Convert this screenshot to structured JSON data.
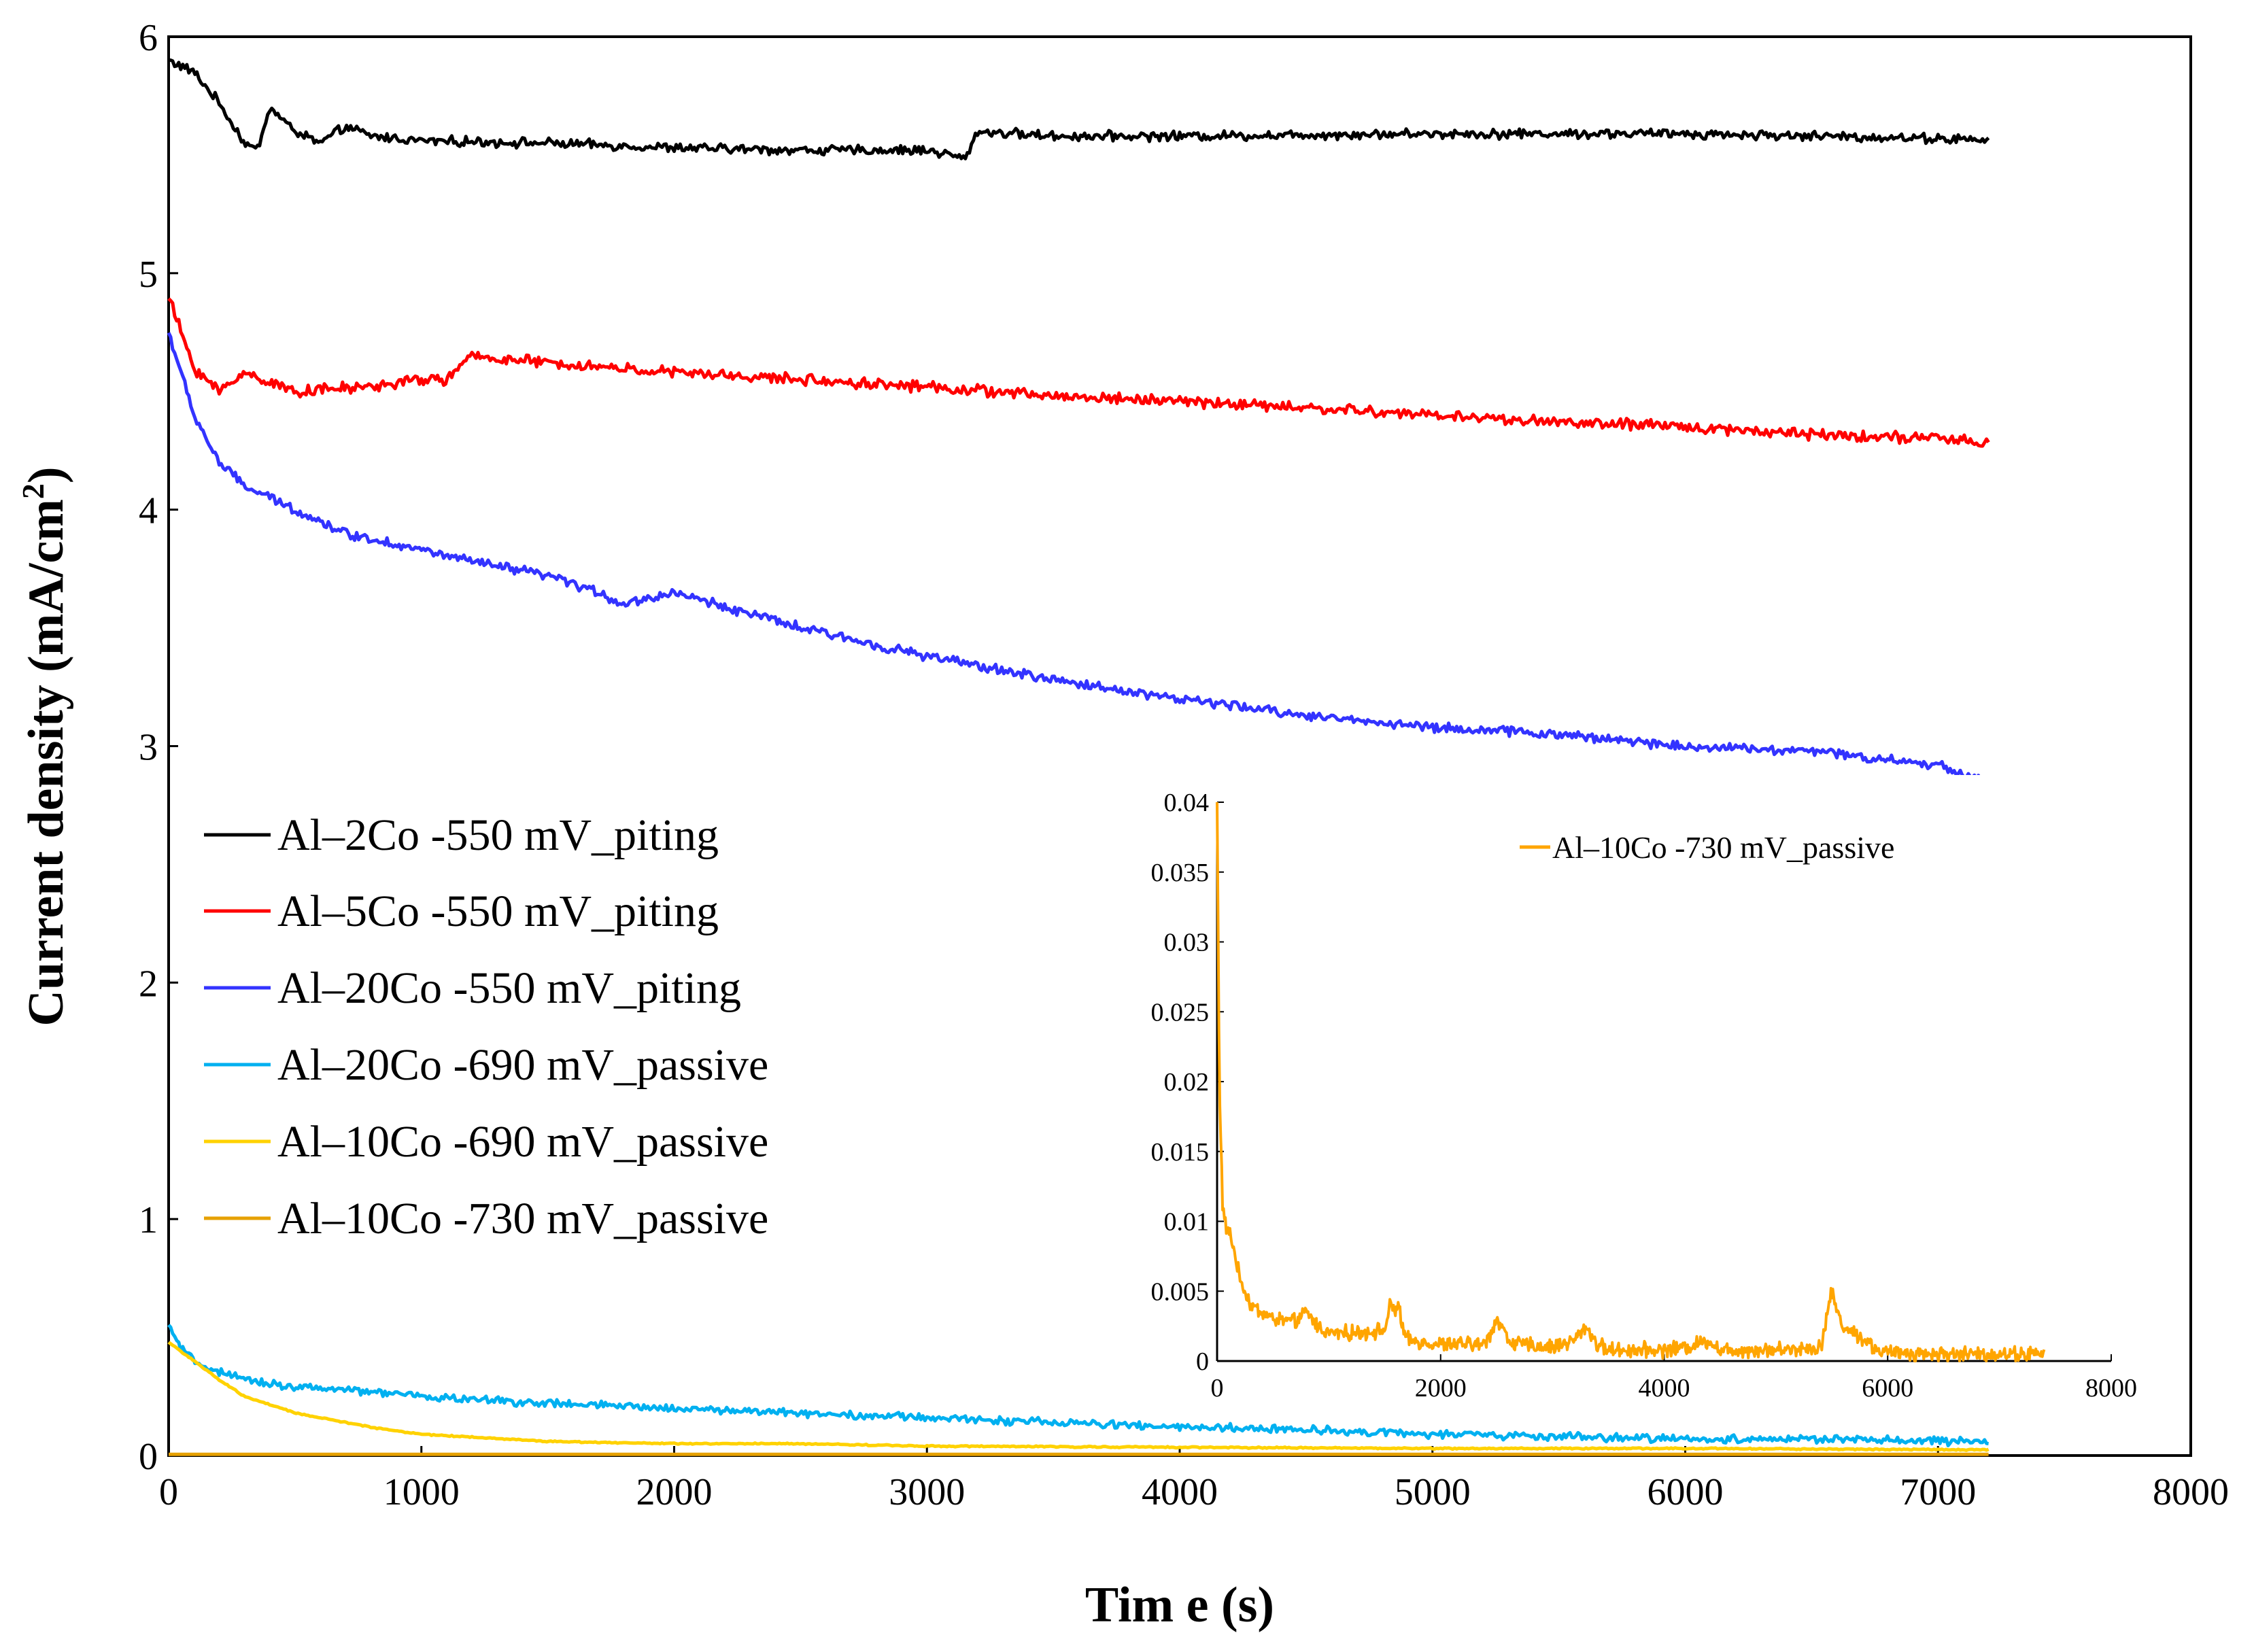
{
  "chart_data": [
    {
      "type": "line",
      "role": "main",
      "title": "",
      "xlabel": "Tim e (s)",
      "ylabel": "Current density (mA/cm",
      "ylabel_sup": "2",
      "ylabel_close": ")",
      "xlim": [
        0,
        8000
      ],
      "ylim": [
        0,
        6
      ],
      "x_ticks": [
        0,
        1000,
        2000,
        3000,
        4000,
        5000,
        6000,
        7000,
        8000
      ],
      "y_ticks": [
        0,
        1,
        2,
        3,
        4,
        5,
        6
      ],
      "grid": false,
      "legend_position": "left-middle",
      "series": [
        {
          "name": "Al–2Co -550 mV_piting",
          "color": "#000000",
          "noise": 0.03,
          "x": [
            0,
            100,
            200,
            300,
            350,
            400,
            500,
            600,
            700,
            800,
            1000,
            1500,
            2000,
            2500,
            3000,
            3100,
            3150,
            3200,
            3500,
            4000,
            5000,
            6000,
            7000,
            7200
          ],
          "values": [
            5.9,
            5.85,
            5.72,
            5.55,
            5.52,
            5.7,
            5.6,
            5.55,
            5.62,
            5.58,
            5.56,
            5.55,
            5.53,
            5.52,
            5.52,
            5.5,
            5.48,
            5.6,
            5.58,
            5.58,
            5.59,
            5.59,
            5.57,
            5.56
          ]
        },
        {
          "name": "Al–5Co -550 mV_piting",
          "color": "#ff0000",
          "noise": 0.035,
          "x": [
            0,
            100,
            200,
            300,
            500,
            800,
            1000,
            1100,
            1200,
            1500,
            2000,
            2500,
            3000,
            3500,
            4000,
            4500,
            5000,
            5500,
            6000,
            6500,
            7000,
            7200
          ],
          "values": [
            4.9,
            4.6,
            4.5,
            4.58,
            4.5,
            4.52,
            4.55,
            4.55,
            4.65,
            4.62,
            4.58,
            4.55,
            4.52,
            4.48,
            4.46,
            4.43,
            4.4,
            4.37,
            4.35,
            4.32,
            4.3,
            4.28
          ]
        },
        {
          "name": "Al–20Co -550 mV_piting",
          "color": "#3333ff",
          "noise": 0.03,
          "x": [
            0,
            100,
            200,
            300,
            500,
            700,
            1000,
            1200,
            1500,
            1700,
            1800,
            2000,
            2500,
            3000,
            3500,
            4000,
            4500,
            5000,
            5500,
            6000,
            6500,
            7000,
            7200
          ],
          "values": [
            4.75,
            4.4,
            4.2,
            4.1,
            4.0,
            3.9,
            3.83,
            3.78,
            3.72,
            3.65,
            3.6,
            3.65,
            3.5,
            3.38,
            3.28,
            3.2,
            3.13,
            3.08,
            3.05,
            3.0,
            2.98,
            2.92,
            2.85
          ]
        },
        {
          "name": "Al–20Co -690 mV_passive",
          "color": "#00b0f0",
          "noise": 0.025,
          "x": [
            0,
            50,
            100,
            200,
            300,
            500,
            800,
            1000,
            1500,
            2000,
            2500,
            3000,
            3500,
            4000,
            4500,
            5000,
            5500,
            6000,
            6500,
            7000,
            7200
          ],
          "values": [
            0.55,
            0.45,
            0.4,
            0.35,
            0.32,
            0.29,
            0.27,
            0.25,
            0.22,
            0.2,
            0.18,
            0.16,
            0.14,
            0.12,
            0.11,
            0.09,
            0.08,
            0.07,
            0.07,
            0.06,
            0.06
          ]
        },
        {
          "name": "Al–10Co -690 mV_passive",
          "color": "#ffd200",
          "noise": 0.004,
          "x": [
            0,
            100,
            200,
            300,
            500,
            800,
            1000,
            1500,
            2000,
            2500,
            3000,
            4000,
            5000,
            6000,
            7000,
            7200
          ],
          "values": [
            0.48,
            0.4,
            0.32,
            0.25,
            0.18,
            0.12,
            0.09,
            0.06,
            0.05,
            0.05,
            0.04,
            0.035,
            0.03,
            0.03,
            0.025,
            0.025
          ]
        },
        {
          "name": "Al–10Co -730 mV_passive",
          "color": "#e6a100",
          "noise": 0.0,
          "x": [
            0,
            7200
          ],
          "values": [
            0.005,
            0.005
          ]
        }
      ]
    },
    {
      "type": "line",
      "role": "inset",
      "title": "",
      "xlabel": "",
      "ylabel": "",
      "xlim": [
        0,
        8000
      ],
      "ylim": [
        0,
        0.04
      ],
      "x_ticks": [
        0,
        2000,
        4000,
        6000,
        8000
      ],
      "y_ticks": [
        0,
        0.005,
        0.01,
        0.015,
        0.02,
        0.025,
        0.03,
        0.035,
        0.04
      ],
      "grid": false,
      "legend_position": "top-right",
      "series": [
        {
          "name": "Al–10Co -730 mV_passive",
          "color": "#ffa500",
          "noise": 0.0008,
          "x": [
            0,
            20,
            50,
            80,
            120,
            150,
            200,
            250,
            300,
            400,
            500,
            700,
            800,
            900,
            1000,
            1200,
            1500,
            1550,
            1600,
            1620,
            1650,
            1700,
            2000,
            2400,
            2500,
            2550,
            2600,
            2700,
            3000,
            3200,
            3300,
            3400,
            3500,
            4000,
            4200,
            4400,
            4500,
            5000,
            5400,
            5450,
            5500,
            5550,
            5600,
            5700,
            5800,
            5900,
            6000,
            6500,
            7000,
            7200,
            7400
          ],
          "values": [
            0.04,
            0.02,
            0.011,
            0.0095,
            0.009,
            0.008,
            0.006,
            0.005,
            0.004,
            0.0035,
            0.003,
            0.0028,
            0.0035,
            0.0025,
            0.002,
            0.002,
            0.0022,
            0.004,
            0.0035,
            0.0045,
            0.0025,
            0.0015,
            0.0012,
            0.0012,
            0.003,
            0.0025,
            0.0015,
            0.0012,
            0.001,
            0.0015,
            0.0025,
            0.0012,
            0.0008,
            0.0008,
            0.001,
            0.0015,
            0.0008,
            0.0008,
            0.001,
            0.003,
            0.005,
            0.0035,
            0.0025,
            0.002,
            0.0015,
            0.0008,
            0.0006,
            0.0005,
            0.0005,
            0.0005,
            0.0005
          ]
        }
      ]
    }
  ]
}
